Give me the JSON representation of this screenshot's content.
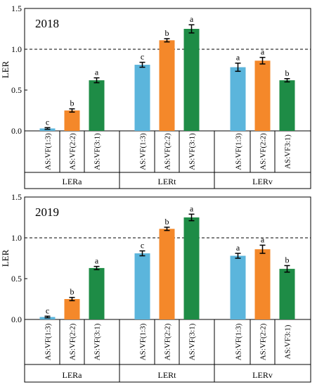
{
  "chart_data": [
    {
      "type": "bar",
      "year_label": "2018",
      "ylabel": "LER",
      "ylim": [
        0,
        1.5
      ],
      "yticks": [
        "0.0",
        "0.5",
        "1.0",
        "1.5"
      ],
      "reference_line": 1.0,
      "groups": [
        {
          "name": "LERa",
          "bars": [
            {
              "label": "AS:VF(1:3)",
              "value": 0.03,
              "error": 0.01,
              "letter": "c",
              "color": "#5bb5dc"
            },
            {
              "label": "AS:VF(2:2)",
              "value": 0.25,
              "error": 0.02,
              "letter": "b",
              "color": "#f4882a"
            },
            {
              "label": "AS:VF(3:1)",
              "value": 0.62,
              "error": 0.03,
              "letter": "a",
              "color": "#1e8c46"
            }
          ]
        },
        {
          "name": "LERt",
          "bars": [
            {
              "label": "AS:VF(1:3)",
              "value": 0.81,
              "error": 0.03,
              "letter": "c",
              "color": "#5bb5dc"
            },
            {
              "label": "AS:VF(2:2)",
              "value": 1.11,
              "error": 0.02,
              "letter": "b",
              "color": "#f4882a"
            },
            {
              "label": "AS:VF(3:1)",
              "value": 1.25,
              "error": 0.05,
              "letter": "a",
              "color": "#1e8c46"
            }
          ]
        },
        {
          "name": "LERv",
          "bars": [
            {
              "label": "AS:VF(1:3)",
              "value": 0.78,
              "error": 0.05,
              "letter": "a",
              "color": "#5bb5dc"
            },
            {
              "label": "AS:VF(2:2)",
              "value": 0.86,
              "error": 0.04,
              "letter": "a",
              "color": "#f4882a"
            },
            {
              "label": "AS:VF3:1)",
              "value": 0.62,
              "error": 0.02,
              "letter": "b",
              "color": "#1e8c46"
            }
          ]
        }
      ]
    },
    {
      "type": "bar",
      "year_label": "2019",
      "ylabel": "LER",
      "ylim": [
        0,
        1.5
      ],
      "yticks": [
        "0.0",
        "0.5",
        "1.0",
        "1.5"
      ],
      "reference_line": 1.0,
      "groups": [
        {
          "name": "LERa",
          "bars": [
            {
              "label": "AS:VF(1:3)",
              "value": 0.03,
              "error": 0.01,
              "letter": "c",
              "color": "#5bb5dc"
            },
            {
              "label": "AS:VF(2:2)",
              "value": 0.25,
              "error": 0.02,
              "letter": "b",
              "color": "#f4882a"
            },
            {
              "label": "AS:VF(3:1)",
              "value": 0.63,
              "error": 0.02,
              "letter": "a",
              "color": "#1e8c46"
            }
          ]
        },
        {
          "name": "LERt",
          "bars": [
            {
              "label": "AS:VF(1:3)",
              "value": 0.81,
              "error": 0.03,
              "letter": "c",
              "color": "#5bb5dc"
            },
            {
              "label": "AS:VF(2:2)",
              "value": 1.11,
              "error": 0.02,
              "letter": "b",
              "color": "#f4882a"
            },
            {
              "label": "AS:VF(3:1)",
              "value": 1.25,
              "error": 0.04,
              "letter": "a",
              "color": "#1e8c46"
            }
          ]
        },
        {
          "name": "LERv",
          "bars": [
            {
              "label": "AS:VF(1:3)",
              "value": 0.78,
              "error": 0.03,
              "letter": "a",
              "color": "#5bb5dc"
            },
            {
              "label": "AS:VF(2:2)",
              "value": 0.86,
              "error": 0.05,
              "letter": "a",
              "color": "#f4882a"
            },
            {
              "label": "AS:VF3:1)",
              "value": 0.62,
              "error": 0.04,
              "letter": "b",
              "color": "#1e8c46"
            }
          ]
        }
      ]
    }
  ]
}
